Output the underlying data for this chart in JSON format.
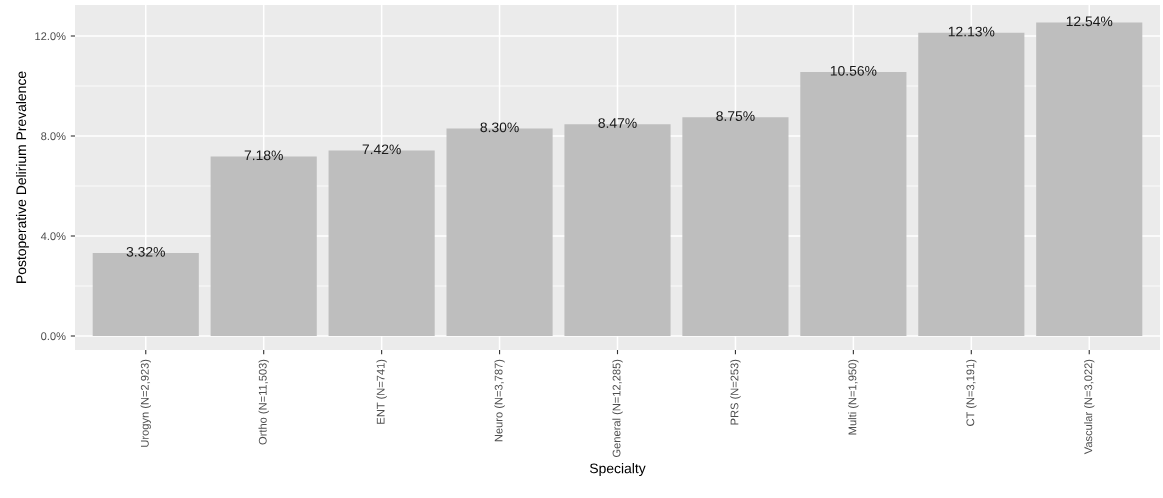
{
  "chart_data": {
    "type": "bar",
    "xlabel": "Specialty",
    "ylabel": "Postoperative Delirium Prevalence",
    "categories": [
      "Urogyn (N=2,923)",
      "Ortho (N=11,503)",
      "ENT (N=741)",
      "Neuro (N=3,787)",
      "General (N=12,285)",
      "PRS (N=253)",
      "Multi (N=1,950)",
      "CT (N=3,191)",
      "Vascular (N=3,022)"
    ],
    "values": [
      3.32,
      7.18,
      7.42,
      8.3,
      8.47,
      8.75,
      10.56,
      12.13,
      12.54
    ],
    "value_labels": [
      "3.32%",
      "7.18%",
      "7.42%",
      "8.30%",
      "8.47%",
      "8.75%",
      "10.56%",
      "12.13%",
      "12.54%"
    ],
    "color": "#bebebe",
    "ylim": [
      -0.56,
      13.24
    ],
    "yticks": [
      {
        "value": 0,
        "label": "0.0%"
      },
      {
        "value": 4,
        "label": "4.0%"
      },
      {
        "value": 8,
        "label": "8.0%"
      },
      {
        "value": 12,
        "label": "12.0%"
      }
    ],
    "grid": true
  }
}
